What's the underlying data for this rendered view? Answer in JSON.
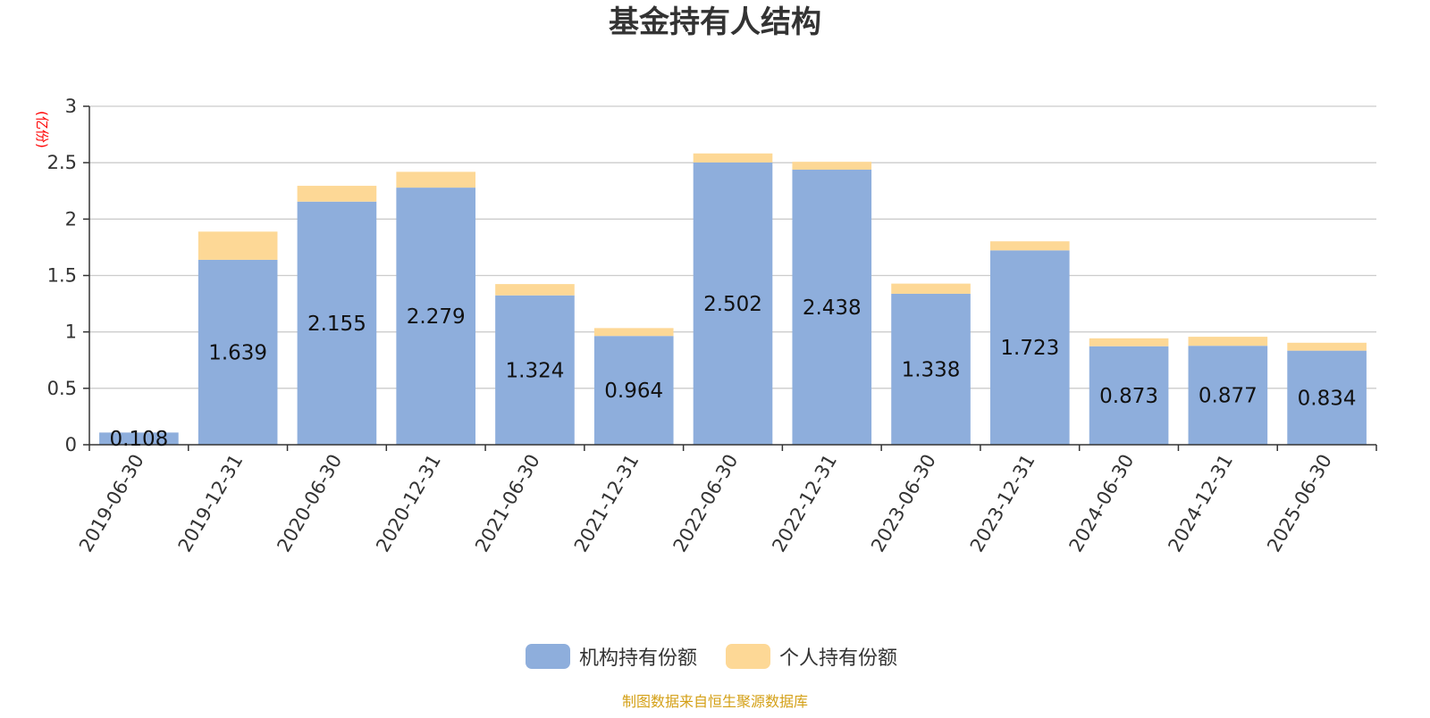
{
  "chart_data": {
    "type": "bar",
    "stacked": true,
    "title": "基金持有人结构",
    "ylabel": "(亿份)",
    "ylim": [
      0,
      3
    ],
    "yticks": [
      "0",
      "0.5",
      "1",
      "1.5",
      "2",
      "2.5",
      "3"
    ],
    "grid": true,
    "legend_position": "bottom",
    "categories": [
      "2019-06-30",
      "2019-12-31",
      "2020-06-30",
      "2020-12-31",
      "2021-06-30",
      "2021-12-31",
      "2022-06-30",
      "2022-12-31",
      "2023-06-30",
      "2023-12-31",
      "2024-06-30",
      "2024-12-31",
      "2025-06-30"
    ],
    "series": [
      {
        "name": "机构持有份额",
        "color": "#8eaedc",
        "values": [
          0.108,
          1.639,
          2.155,
          2.279,
          1.324,
          0.964,
          2.502,
          2.438,
          1.338,
          1.723,
          0.873,
          0.877,
          0.834
        ],
        "labels": [
          "0.108",
          "1.639",
          "2.155",
          "2.279",
          "1.324",
          "0.964",
          "2.502",
          "2.438",
          "1.338",
          "1.723",
          "0.873",
          "0.877",
          "0.834"
        ]
      },
      {
        "name": "个人持有份额",
        "color": "#fdd896",
        "values": [
          0.0,
          0.25,
          0.14,
          0.14,
          0.1,
          0.07,
          0.08,
          0.07,
          0.09,
          0.08,
          0.07,
          0.08,
          0.07
        ]
      }
    ],
    "source": "制图数据来自恒生聚源数据库"
  }
}
